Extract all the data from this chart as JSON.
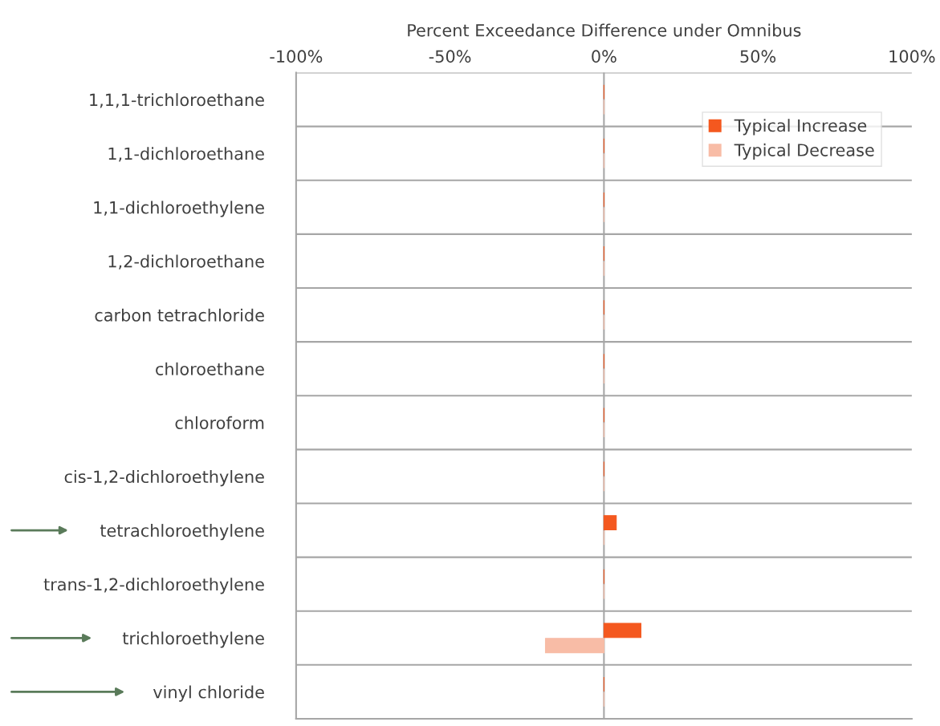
{
  "chart_data": {
    "type": "bar",
    "orientation": "horizontal",
    "xlabel": "Percent Exceedance Difference under Omnibus",
    "categories": [
      "1,1,1-trichloroethane",
      "1,1-dichloroethane",
      "1,1-dichloroethylene",
      "1,2-dichloroethane",
      "carbon tetrachloride",
      "chloroethane",
      "chloroform",
      "cis-1,2-dichloroethylene",
      "tetrachloroethylene",
      "trans-1,2-dichloroethylene",
      "trichloroethylene",
      "vinyl chloride"
    ],
    "series": [
      {
        "name": "Typical Increase",
        "color": "#f4581f",
        "values": [
          0,
          0,
          0,
          0,
          0,
          0,
          0,
          0,
          4,
          0,
          12,
          0
        ]
      },
      {
        "name": "Typical Decrease",
        "color": "#f8bca6",
        "values": [
          0,
          0,
          0,
          0,
          0,
          0,
          0,
          0,
          0,
          0,
          -19,
          0
        ]
      }
    ],
    "xlim": [
      -100,
      100
    ],
    "xticks": [
      {
        "value": -100,
        "label": "-100%"
      },
      {
        "value": -50,
        "label": "-50%"
      },
      {
        "value": 0,
        "label": "0%"
      },
      {
        "value": 50,
        "label": "50%"
      },
      {
        "value": 100,
        "label": "100%"
      }
    ],
    "ref_lines": [
      {
        "axis": "x",
        "value": 0,
        "color": "#a6a6a6"
      }
    ],
    "grid": "y",
    "legend": "top right"
  }
}
